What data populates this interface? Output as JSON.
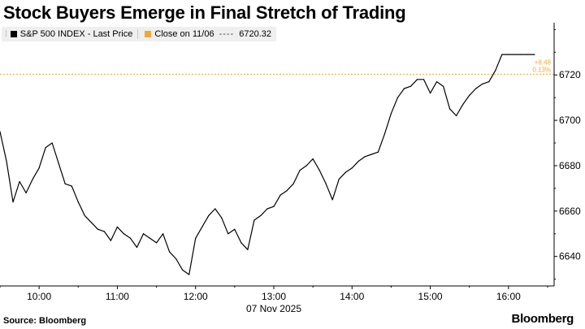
{
  "title": "Stock Buyers Emerge in Final Stretch of Trading",
  "legend": {
    "series_label": "S&P 500 INDEX - Last Price",
    "ref_label": "Close on 11/06",
    "ref_value": "6720.32",
    "series_color": "#000000",
    "ref_color": "#f0a830"
  },
  "source": "Source: Bloomberg",
  "brand": "Bloomberg",
  "chart_data": {
    "type": "line",
    "title": "Stock Buyers Emerge in Final Stretch of Trading",
    "date_label": "07 Nov 2025",
    "x_tick_labels": [
      "10:00",
      "11:00",
      "12:00",
      "13:00",
      "14:00",
      "15:00",
      "16:00"
    ],
    "y_ticks": [
      6640,
      6660,
      6680,
      6700,
      6720
    ],
    "y_axis_side": "right",
    "ylim": [
      6627,
      6743
    ],
    "xlim": [
      "09:30",
      "16:35"
    ],
    "grid": false,
    "reference_line": {
      "label": "Close on 11/06",
      "value": 6720.32,
      "color": "#f0a830"
    },
    "change_annotation": {
      "abs": "+8.48",
      "pct": "0.13%"
    },
    "series": [
      {
        "name": "S&P 500 INDEX - Last Price",
        "color": "#000000",
        "x": [
          "09:30",
          "09:35",
          "09:40",
          "09:45",
          "09:50",
          "09:55",
          "10:00",
          "10:05",
          "10:10",
          "10:15",
          "10:20",
          "10:25",
          "10:30",
          "10:35",
          "10:40",
          "10:45",
          "10:50",
          "10:55",
          "11:00",
          "11:05",
          "11:10",
          "11:15",
          "11:20",
          "11:25",
          "11:30",
          "11:35",
          "11:40",
          "11:45",
          "11:50",
          "11:55",
          "12:00",
          "12:05",
          "12:10",
          "12:15",
          "12:20",
          "12:25",
          "12:30",
          "12:35",
          "12:40",
          "12:45",
          "12:50",
          "12:55",
          "13:00",
          "13:05",
          "13:10",
          "13:15",
          "13:20",
          "13:25",
          "13:30",
          "13:35",
          "13:40",
          "13:45",
          "13:50",
          "13:55",
          "14:00",
          "14:05",
          "14:10",
          "14:15",
          "14:20",
          "14:25",
          "14:30",
          "14:35",
          "14:40",
          "14:45",
          "14:50",
          "14:55",
          "15:00",
          "15:05",
          "15:10",
          "15:15",
          "15:20",
          "15:25",
          "15:30",
          "15:35",
          "15:40",
          "15:45",
          "15:50",
          "15:55",
          "16:00",
          "16:05",
          "16:10",
          "16:15",
          "16:20"
        ],
        "values": [
          6695,
          6682,
          6664,
          6673,
          6668,
          6674,
          6679,
          6688,
          6690,
          6681,
          6672,
          6671,
          6664,
          6658,
          6655,
          6652,
          6651,
          6647,
          6653,
          6650,
          6648,
          6644,
          6650,
          6648,
          6646,
          6650,
          6642,
          6639,
          6634,
          6632,
          6648,
          6653,
          6658,
          6661,
          6657,
          6650,
          6652,
          6646,
          6643,
          6656,
          6658,
          6661,
          6662,
          6667,
          6669,
          6672,
          6678,
          6680,
          6683,
          6678,
          6672,
          6665,
          6674,
          6677,
          6679,
          6682,
          6684,
          6685,
          6686,
          6694,
          6703,
          6710,
          6714,
          6715,
          6718,
          6718,
          6712,
          6717,
          6715,
          6705,
          6702,
          6707,
          6711,
          6714,
          6716,
          6717,
          6722,
          6729,
          6729,
          6729,
          6729,
          6729,
          6729
        ]
      }
    ]
  }
}
